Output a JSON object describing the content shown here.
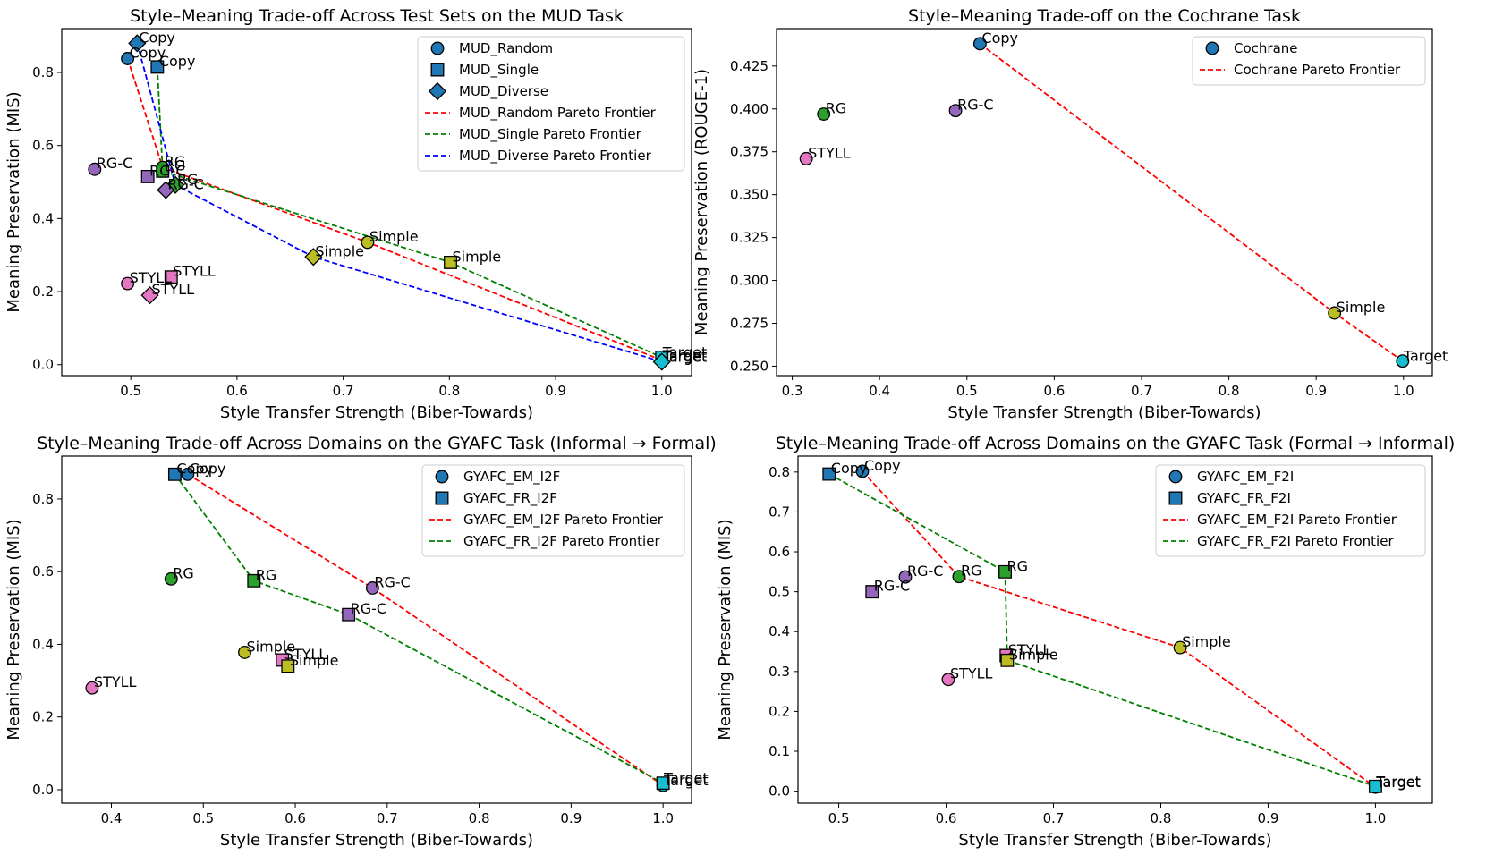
{
  "colors": {
    "Copy": "#1f77b4",
    "RG": "#2ca02c",
    "RG-C": "#9467bd",
    "STYLL": "#e377c2",
    "Simple": "#bcbd22",
    "Target": "#17becf",
    "frontier_red": "#ff0000",
    "frontier_green": "#008000",
    "frontier_blue": "#0000ff"
  },
  "chart_data": [
    {
      "type": "scatter",
      "title": "Style–Meaning Trade-off Across Test Sets on the MUD Task",
      "xlabel": "Style Transfer Strength (Biber-Towards)",
      "ylabel": "Meaning Preservation (MIS)",
      "xlim": [
        0.435,
        1.028
      ],
      "ylim": [
        -0.03,
        0.92
      ],
      "xticks": [
        0.5,
        0.6,
        0.7,
        0.8,
        0.9,
        1.0
      ],
      "xtick_labels": [
        "0.5",
        "0.6",
        "0.7",
        "0.8",
        "0.9",
        "1.0"
      ],
      "yticks": [
        0.0,
        0.2,
        0.4,
        0.6,
        0.8
      ],
      "ytick_labels": [
        "0.0",
        "0.2",
        "0.4",
        "0.6",
        "0.8"
      ],
      "series": [
        {
          "name": "MUD_Random",
          "marker": "circle",
          "points": [
            {
              "label": "Copy",
              "x": 0.497,
              "y": 0.838
            },
            {
              "label": "RG",
              "x": 0.53,
              "y": 0.54
            },
            {
              "label": "RG-C",
              "x": 0.466,
              "y": 0.535
            },
            {
              "label": "STYLL",
              "x": 0.497,
              "y": 0.222
            },
            {
              "label": "Simple",
              "x": 0.723,
              "y": 0.335
            },
            {
              "label": "Target",
              "x": 1.0,
              "y": 0.012
            }
          ]
        },
        {
          "name": "MUD_Single",
          "marker": "square",
          "points": [
            {
              "label": "Copy",
              "x": 0.525,
              "y": 0.815
            },
            {
              "label": "RG",
              "x": 0.53,
              "y": 0.53
            },
            {
              "label": "RG-C",
              "x": 0.516,
              "y": 0.515
            },
            {
              "label": "STYLL",
              "x": 0.538,
              "y": 0.24
            },
            {
              "label": "Simple",
              "x": 0.801,
              "y": 0.28
            },
            {
              "label": "Target",
              "x": 1.0,
              "y": 0.02
            }
          ]
        },
        {
          "name": "MUD_Diverse",
          "marker": "diamond",
          "points": [
            {
              "label": "Copy",
              "x": 0.506,
              "y": 0.88
            },
            {
              "label": "RG",
              "x": 0.542,
              "y": 0.492
            },
            {
              "label": "RG-C",
              "x": 0.533,
              "y": 0.478
            },
            {
              "label": "STYLL",
              "x": 0.518,
              "y": 0.19
            },
            {
              "label": "Simple",
              "x": 0.672,
              "y": 0.295
            },
            {
              "label": "Target",
              "x": 1.0,
              "y": 0.008
            }
          ]
        }
      ],
      "frontiers": [
        {
          "name": "MUD_Random Pareto Frontier",
          "color": "#ff0000",
          "points": [
            [
              0.497,
              0.838
            ],
            [
              0.53,
              0.54
            ],
            [
              0.723,
              0.335
            ],
            [
              1.0,
              0.012
            ]
          ]
        },
        {
          "name": "MUD_Single Pareto Frontier",
          "color": "#008000",
          "points": [
            [
              0.525,
              0.815
            ],
            [
              0.53,
              0.53
            ],
            [
              0.801,
              0.28
            ],
            [
              1.0,
              0.02
            ]
          ]
        },
        {
          "name": "MUD_Diverse Pareto Frontier",
          "color": "#0000ff",
          "points": [
            [
              0.506,
              0.88
            ],
            [
              0.542,
              0.492
            ],
            [
              0.672,
              0.295
            ],
            [
              1.0,
              0.008
            ]
          ]
        }
      ],
      "legend": [
        {
          "label": "MUD_Random",
          "kind": "marker",
          "marker": "circle"
        },
        {
          "label": "MUD_Single",
          "kind": "marker",
          "marker": "square"
        },
        {
          "label": "MUD_Diverse",
          "kind": "marker",
          "marker": "diamond"
        },
        {
          "label": "MUD_Random Pareto Frontier",
          "kind": "line",
          "color": "#ff0000"
        },
        {
          "label": "MUD_Single Pareto Frontier",
          "kind": "line",
          "color": "#008000"
        },
        {
          "label": "MUD_Diverse Pareto Frontier",
          "kind": "line",
          "color": "#0000ff"
        }
      ],
      "legend_position": "top-right"
    },
    {
      "type": "scatter",
      "title": "Style–Meaning Trade-off on the Cochrane Task",
      "xlabel": "Style Transfer Strength (Biber-Towards)",
      "ylabel": "Meaning Preservation (ROUGE-1)",
      "xlim": [
        0.282,
        1.033
      ],
      "ylim": [
        0.2445,
        0.4468
      ],
      "xticks": [
        0.3,
        0.4,
        0.5,
        0.6,
        0.7,
        0.8,
        0.9,
        1.0
      ],
      "xtick_labels": [
        "0.3",
        "0.4",
        "0.5",
        "0.6",
        "0.7",
        "0.8",
        "0.9",
        "1.0"
      ],
      "yticks": [
        0.25,
        0.275,
        0.3,
        0.325,
        0.35,
        0.375,
        0.4,
        0.425
      ],
      "ytick_labels": [
        "0.250",
        "0.275",
        "0.300",
        "0.325",
        "0.350",
        "0.375",
        "0.400",
        "0.425"
      ],
      "series": [
        {
          "name": "Cochrane",
          "marker": "circle",
          "points": [
            {
              "label": "Copy",
              "x": 0.515,
              "y": 0.438
            },
            {
              "label": "RG",
              "x": 0.336,
              "y": 0.397
            },
            {
              "label": "RG-C",
              "x": 0.487,
              "y": 0.399
            },
            {
              "label": "STYLL",
              "x": 0.316,
              "y": 0.371
            },
            {
              "label": "Simple",
              "x": 0.921,
              "y": 0.281
            },
            {
              "label": "Target",
              "x": 0.999,
              "y": 0.253
            }
          ]
        }
      ],
      "frontiers": [
        {
          "name": "Cochrane Pareto Frontier",
          "color": "#ff0000",
          "points": [
            [
              0.515,
              0.438
            ],
            [
              0.921,
              0.281
            ],
            [
              0.999,
              0.253
            ]
          ]
        }
      ],
      "legend": [
        {
          "label": "Cochrane",
          "kind": "marker",
          "marker": "circle"
        },
        {
          "label": "Cochrane Pareto Frontier",
          "kind": "line",
          "color": "#ff0000"
        }
      ],
      "legend_position": "top-right"
    },
    {
      "type": "scatter",
      "title": "Style–Meaning Trade-off Across Domains on the GYAFC Task (Informal → Formal)",
      "xlabel": "Style Transfer Strength (Biber-Towards)",
      "ylabel": "Meaning Preservation (MIS)",
      "xlim": [
        0.346,
        1.031
      ],
      "ylim": [
        -0.037,
        0.918
      ],
      "xticks": [
        0.4,
        0.5,
        0.6,
        0.7,
        0.8,
        0.9,
        1.0
      ],
      "xtick_labels": [
        "0.4",
        "0.5",
        "0.6",
        "0.7",
        "0.8",
        "0.9",
        "1.0"
      ],
      "yticks": [
        0.0,
        0.2,
        0.4,
        0.6,
        0.8
      ],
      "ytick_labels": [
        "0.0",
        "0.2",
        "0.4",
        "0.6",
        "0.8"
      ],
      "series": [
        {
          "name": "GYAFC_EM_I2F",
          "marker": "circle",
          "points": [
            {
              "label": "Copy",
              "x": 0.483,
              "y": 0.868
            },
            {
              "label": "RG",
              "x": 0.465,
              "y": 0.58
            },
            {
              "label": "RG-C",
              "x": 0.684,
              "y": 0.555
            },
            {
              "label": "STYLL",
              "x": 0.379,
              "y": 0.28
            },
            {
              "label": "Simple",
              "x": 0.545,
              "y": 0.378
            },
            {
              "label": "Target",
              "x": 1.0,
              "y": 0.012
            }
          ]
        },
        {
          "name": "GYAFC_FR_I2F",
          "marker": "square",
          "points": [
            {
              "label": "Copy",
              "x": 0.469,
              "y": 0.868
            },
            {
              "label": "RG",
              "x": 0.555,
              "y": 0.575
            },
            {
              "label": "RG-C",
              "x": 0.658,
              "y": 0.482
            },
            {
              "label": "STYLL",
              "x": 0.586,
              "y": 0.357
            },
            {
              "label": "Simple",
              "x": 0.592,
              "y": 0.34
            },
            {
              "label": "Target",
              "x": 1.0,
              "y": 0.018
            }
          ]
        }
      ],
      "frontiers": [
        {
          "name": "GYAFC_EM_I2F Pareto Frontier",
          "color": "#ff0000",
          "points": [
            [
              0.483,
              0.868
            ],
            [
              0.684,
              0.555
            ],
            [
              1.0,
              0.012
            ]
          ]
        },
        {
          "name": "GYAFC_FR_I2F Pareto Frontier",
          "color": "#008000",
          "points": [
            [
              0.469,
              0.868
            ],
            [
              0.555,
              0.575
            ],
            [
              0.658,
              0.482
            ],
            [
              1.0,
              0.018
            ]
          ]
        }
      ],
      "legend": [
        {
          "label": "GYAFC_EM_I2F",
          "kind": "marker",
          "marker": "circle"
        },
        {
          "label": "GYAFC_FR_I2F",
          "kind": "marker",
          "marker": "square"
        },
        {
          "label": "GYAFC_EM_I2F Pareto Frontier",
          "kind": "line",
          "color": "#ff0000"
        },
        {
          "label": "GYAFC_FR_I2F Pareto Frontier",
          "kind": "line",
          "color": "#008000"
        }
      ],
      "legend_position": "top-right"
    },
    {
      "type": "scatter",
      "title": "Style–Meaning Trade-off Across Domains on the GYAFC Task (Formal → Informal)",
      "xlabel": "Style Transfer Strength (Biber-Towards)",
      "ylabel": "Meaning Preservation (MIS)",
      "xlim": [
        0.462,
        1.053
      ],
      "ylim": [
        -0.03,
        0.84
      ],
      "xticks": [
        0.5,
        0.6,
        0.7,
        0.8,
        0.9,
        1.0
      ],
      "xtick_labels": [
        "0.5",
        "0.6",
        "0.7",
        "0.8",
        "0.9",
        "1.0"
      ],
      "yticks": [
        0.0,
        0.1,
        0.2,
        0.3,
        0.4,
        0.5,
        0.6,
        0.7,
        0.8
      ],
      "ytick_labels": [
        "0.0",
        "0.1",
        "0.2",
        "0.3",
        "0.4",
        "0.5",
        "0.6",
        "0.7",
        "0.8"
      ],
      "series": [
        {
          "name": "GYAFC_EM_F2I",
          "marker": "circle",
          "points": [
            {
              "label": "Copy",
              "x": 0.522,
              "y": 0.802
            },
            {
              "label": "RG",
              "x": 0.612,
              "y": 0.538
            },
            {
              "label": "RG-C",
              "x": 0.562,
              "y": 0.537
            },
            {
              "label": "STYLL",
              "x": 0.602,
              "y": 0.28
            },
            {
              "label": "Simple",
              "x": 0.818,
              "y": 0.36
            },
            {
              "label": "Target",
              "x": 1.0,
              "y": 0.01
            }
          ]
        },
        {
          "name": "GYAFC_FR_F2I",
          "marker": "square",
          "points": [
            {
              "label": "Copy",
              "x": 0.491,
              "y": 0.795
            },
            {
              "label": "RG",
              "x": 0.655,
              "y": 0.55
            },
            {
              "label": "RG-C",
              "x": 0.531,
              "y": 0.5
            },
            {
              "label": "STYLL",
              "x": 0.656,
              "y": 0.34
            },
            {
              "label": "Simple",
              "x": 0.657,
              "y": 0.328
            },
            {
              "label": "Target",
              "x": 1.0,
              "y": 0.012
            }
          ]
        }
      ],
      "frontiers": [
        {
          "name": "GYAFC_EM_F2I Pareto Frontier",
          "color": "#ff0000",
          "points": [
            [
              0.522,
              0.802
            ],
            [
              0.612,
              0.538
            ],
            [
              0.818,
              0.36
            ],
            [
              1.0,
              0.01
            ]
          ]
        },
        {
          "name": "GYAFC_FR_F2I Pareto Frontier",
          "color": "#008000",
          "points": [
            [
              0.491,
              0.795
            ],
            [
              0.655,
              0.55
            ],
            [
              0.657,
              0.328
            ],
            [
              1.0,
              0.012
            ]
          ]
        }
      ],
      "legend": [
        {
          "label": "GYAFC_EM_F2I",
          "kind": "marker",
          "marker": "circle"
        },
        {
          "label": "GYAFC_FR_F2I",
          "kind": "marker",
          "marker": "square"
        },
        {
          "label": "GYAFC_EM_F2I Pareto Frontier",
          "kind": "line",
          "color": "#ff0000"
        },
        {
          "label": "GYAFC_FR_F2I Pareto Frontier",
          "kind": "line",
          "color": "#008000"
        }
      ],
      "legend_position": "top-right"
    }
  ]
}
